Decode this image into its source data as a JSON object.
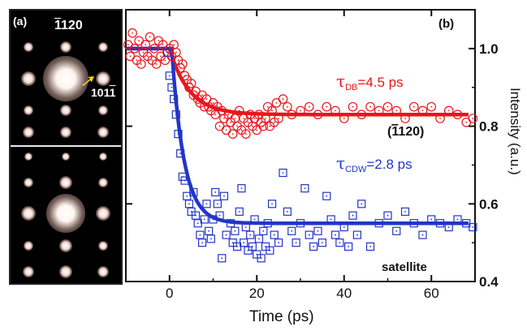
{
  "panel_a": {
    "label": "(a)",
    "reflection_1": "120",
    "reflection_1_overbar": "1",
    "reflection_2": "101",
    "reflection_2_overbar": "1"
  },
  "chart_data": {
    "type": "scatter",
    "panel_label": "(b)",
    "title": "",
    "xlabel": "Time (ps)",
    "ylabel": "Intensity (a.u.)",
    "xlim": [
      -10,
      70
    ],
    "ylim": [
      0.4,
      1.1
    ],
    "x_ticks": [
      0,
      20,
      40,
      60
    ],
    "y_ticks": [
      0.4,
      0.6,
      0.8,
      1.0
    ],
    "x_tick_labels": [
      "0",
      "20",
      "40",
      "60"
    ],
    "y_tick_labels": [
      "0.4",
      "0.6",
      "0.8",
      "1.0"
    ],
    "grid": false,
    "series": [
      {
        "name": "(120)",
        "label_overbar": "1",
        "color": "#e8161b",
        "marker": "circle-dot",
        "fit": {
          "baseline": 1.0,
          "final": 0.83,
          "tau": 4.5,
          "t0": 0
        },
        "annotation": {
          "symbol": "τ",
          "sub": "DB",
          "text": "=4.5 ps"
        },
        "points": [
          [
            -9.5,
            1.01
          ],
          [
            -9,
            0.98
          ],
          [
            -8.5,
            1.04
          ],
          [
            -8,
            1.0
          ],
          [
            -7.5,
            0.97
          ],
          [
            -7,
            1.02
          ],
          [
            -6.5,
            0.96
          ],
          [
            -6,
            0.99
          ],
          [
            -5.5,
            1.01
          ],
          [
            -5,
            0.98
          ],
          [
            -4.5,
            1.03
          ],
          [
            -4,
            0.97
          ],
          [
            -3.5,
            1.0
          ],
          [
            -3,
            0.96
          ],
          [
            -2.5,
            1.02
          ],
          [
            -2,
            0.98
          ],
          [
            -1.5,
            1.01
          ],
          [
            -1,
            0.97
          ],
          [
            -0.5,
            0.99
          ],
          [
            0,
            1.0
          ],
          [
            0.5,
            0.98
          ],
          [
            1,
            1.01
          ],
          [
            1.5,
            0.99
          ],
          [
            2,
            0.97
          ],
          [
            2.5,
            0.95
          ],
          [
            3,
            0.96
          ],
          [
            3.5,
            0.93
          ],
          [
            4,
            0.92
          ],
          [
            4.5,
            0.9
          ],
          [
            5,
            0.91
          ],
          [
            5.5,
            0.88
          ],
          [
            6,
            0.89
          ],
          [
            6.5,
            0.87
          ],
          [
            7,
            0.86
          ],
          [
            7.5,
            0.88
          ],
          [
            8,
            0.85
          ],
          [
            8.5,
            0.87
          ],
          [
            9,
            0.85
          ],
          [
            9.5,
            0.84
          ],
          [
            10,
            0.86
          ],
          [
            10.5,
            0.83
          ],
          [
            11,
            0.85
          ],
          [
            11.5,
            0.8
          ],
          [
            12,
            0.84
          ],
          [
            12.5,
            0.82
          ],
          [
            13,
            0.79
          ],
          [
            13.5,
            0.83
          ],
          [
            14,
            0.81
          ],
          [
            14.5,
            0.78
          ],
          [
            15,
            0.82
          ],
          [
            15.5,
            0.8
          ],
          [
            16,
            0.84
          ],
          [
            16.5,
            0.79
          ],
          [
            17,
            0.82
          ],
          [
            17.5,
            0.78
          ],
          [
            18,
            0.81
          ],
          [
            18.5,
            0.83
          ],
          [
            19,
            0.8
          ],
          [
            19.5,
            0.82
          ],
          [
            20,
            0.79
          ],
          [
            20.5,
            0.83
          ],
          [
            21,
            0.81
          ],
          [
            21.5,
            0.8
          ],
          [
            22,
            0.82
          ],
          [
            22.5,
            0.85
          ],
          [
            23,
            0.8
          ],
          [
            23.5,
            0.84
          ],
          [
            24,
            0.81
          ],
          [
            24.5,
            0.86
          ],
          [
            25,
            0.82
          ],
          [
            26,
            0.87
          ],
          [
            27,
            0.85
          ],
          [
            28,
            0.83
          ],
          [
            30,
            0.84
          ],
          [
            32,
            0.85
          ],
          [
            34,
            0.83
          ],
          [
            36,
            0.85
          ],
          [
            38,
            0.84
          ],
          [
            40,
            0.82
          ],
          [
            42,
            0.85
          ],
          [
            44,
            0.83
          ],
          [
            46,
            0.85
          ],
          [
            48,
            0.84
          ],
          [
            50,
            0.85
          ],
          [
            52,
            0.84
          ],
          [
            54,
            0.82
          ],
          [
            56,
            0.85
          ],
          [
            58,
            0.84
          ],
          [
            60,
            0.85
          ],
          [
            62,
            0.82
          ],
          [
            64,
            0.84
          ],
          [
            66,
            0.83
          ],
          [
            68,
            0.81
          ],
          [
            69.5,
            0.82
          ]
        ]
      },
      {
        "name": "satellite",
        "color": "#2235c8",
        "marker": "square-dot",
        "fit": {
          "baseline": 1.0,
          "final": 0.55,
          "tau": 2.8,
          "t0": 0.5
        },
        "annotation": {
          "symbol": "τ",
          "sub": "CDW",
          "text": "=2.8 ps"
        },
        "points": [
          [
            -0.5,
            0.99
          ],
          [
            0,
            0.93
          ],
          [
            0.5,
            0.9
          ],
          [
            1,
            0.87
          ],
          [
            1.5,
            0.83
          ],
          [
            2,
            0.78
          ],
          [
            2.5,
            0.73
          ],
          [
            3,
            0.67
          ],
          [
            3.5,
            0.66
          ],
          [
            4,
            0.62
          ],
          [
            4.5,
            0.6
          ],
          [
            5,
            0.58
          ],
          [
            5.5,
            0.63
          ],
          [
            6,
            0.57
          ],
          [
            6.5,
            0.55
          ],
          [
            7,
            0.52
          ],
          [
            7.5,
            0.5
          ],
          [
            8,
            0.56
          ],
          [
            8.5,
            0.6
          ],
          [
            9,
            0.53
          ],
          [
            9.5,
            0.51
          ],
          [
            10,
            0.56
          ],
          [
            10.5,
            0.63
          ],
          [
            11,
            0.6
          ],
          [
            11.5,
            0.57
          ],
          [
            12,
            0.46
          ],
          [
            12.5,
            0.62
          ],
          [
            13,
            0.52
          ],
          [
            14,
            0.55
          ],
          [
            14.5,
            0.5
          ],
          [
            15,
            0.53
          ],
          [
            15.5,
            0.49
          ],
          [
            16,
            0.58
          ],
          [
            16.5,
            0.64
          ],
          [
            17,
            0.5
          ],
          [
            17.5,
            0.54
          ],
          [
            18,
            0.48
          ],
          [
            18.5,
            0.52
          ],
          [
            19,
            0.49
          ],
          [
            19.5,
            0.56
          ],
          [
            20,
            0.47
          ],
          [
            20.5,
            0.51
          ],
          [
            21,
            0.46
          ],
          [
            21.5,
            0.53
          ],
          [
            22,
            0.49
          ],
          [
            22.5,
            0.55
          ],
          [
            23,
            0.48
          ],
          [
            23.5,
            0.6
          ],
          [
            24,
            0.52
          ],
          [
            25,
            0.5
          ],
          [
            26,
            0.68
          ],
          [
            27,
            0.58
          ],
          [
            28,
            0.53
          ],
          [
            29,
            0.5
          ],
          [
            30,
            0.55
          ],
          [
            31,
            0.64
          ],
          [
            32,
            0.52
          ],
          [
            33,
            0.49
          ],
          [
            34,
            0.53
          ],
          [
            35,
            0.5
          ],
          [
            36,
            0.62
          ],
          [
            37,
            0.56
          ],
          [
            38,
            0.52
          ],
          [
            39,
            0.5
          ],
          [
            40,
            0.54
          ],
          [
            41,
            0.49
          ],
          [
            42,
            0.57
          ],
          [
            43,
            0.52
          ],
          [
            44,
            0.6
          ],
          [
            46,
            0.49
          ],
          [
            48,
            0.55
          ],
          [
            50,
            0.57
          ],
          [
            52,
            0.53
          ],
          [
            54,
            0.58
          ],
          [
            56,
            0.55
          ],
          [
            58,
            0.52
          ],
          [
            60,
            0.56
          ],
          [
            62,
            0.55
          ],
          [
            64,
            0.54
          ],
          [
            66,
            0.56
          ],
          [
            68,
            0.55
          ],
          [
            69.5,
            0.54
          ]
        ]
      }
    ]
  }
}
